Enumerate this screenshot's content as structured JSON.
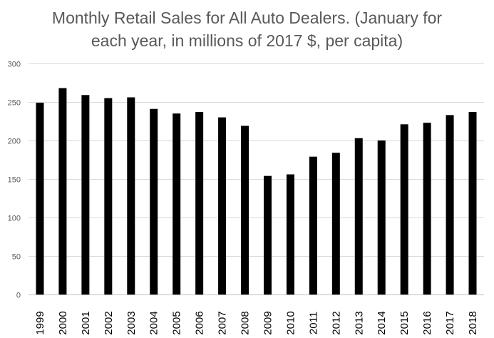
{
  "chart_data": {
    "type": "bar",
    "title_lines": [
      "Monthly Retail Sales for All Auto Dealers. (January for",
      "each year, in millions of 2017 $, per capita)"
    ],
    "categories": [
      "1999",
      "2000",
      "2001",
      "2002",
      "2003",
      "2004",
      "2005",
      "2006",
      "2007",
      "2008",
      "2009",
      "2010",
      "2011",
      "2012",
      "2013",
      "2014",
      "2015",
      "2016",
      "2017",
      "2018"
    ],
    "values": [
      249,
      268,
      259,
      255,
      256,
      241,
      235,
      237,
      230,
      219,
      154,
      156,
      179,
      184,
      203,
      200,
      221,
      223,
      233,
      237
    ],
    "yticks": [
      0,
      50,
      100,
      150,
      200,
      250,
      300
    ],
    "ylim": [
      0,
      300
    ],
    "xlabel": "",
    "ylabel": "",
    "grid": true,
    "colors": {
      "bar": "#000000",
      "grid": "#d9d9d9",
      "axis": "#bfbfbf"
    }
  }
}
